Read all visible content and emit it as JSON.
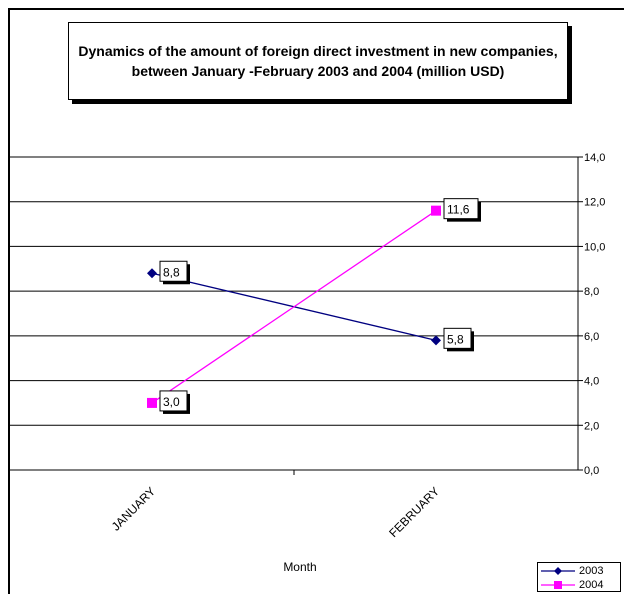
{
  "chart_data": {
    "type": "line",
    "title": "Dynamics of the amount of foreign direct investment in new companies, between January -February 2003 and  2004 (million USD)",
    "xlabel": "Month",
    "ylabel": "",
    "categories": [
      "JANUARY",
      "FEBRUARY"
    ],
    "ylim": [
      0,
      14
    ],
    "yticks": [
      0,
      2,
      4,
      6,
      8,
      10,
      12,
      14
    ],
    "ytick_labels": [
      "0,0",
      "2,0",
      "4,0",
      "6,0",
      "8,0",
      "10,0",
      "12,0",
      "14,0"
    ],
    "grid": true,
    "legend_position": "bottom-right",
    "series": [
      {
        "name": "2003",
        "values": [
          8.8,
          5.8
        ],
        "labels": [
          "8,8",
          "5,8"
        ],
        "color": "#000080",
        "marker": "diamond"
      },
      {
        "name": "2004",
        "values": [
          3.0,
          11.6
        ],
        "labels": [
          "3,0",
          "11,6"
        ],
        "color": "#ff00ff",
        "marker": "square"
      }
    ]
  }
}
